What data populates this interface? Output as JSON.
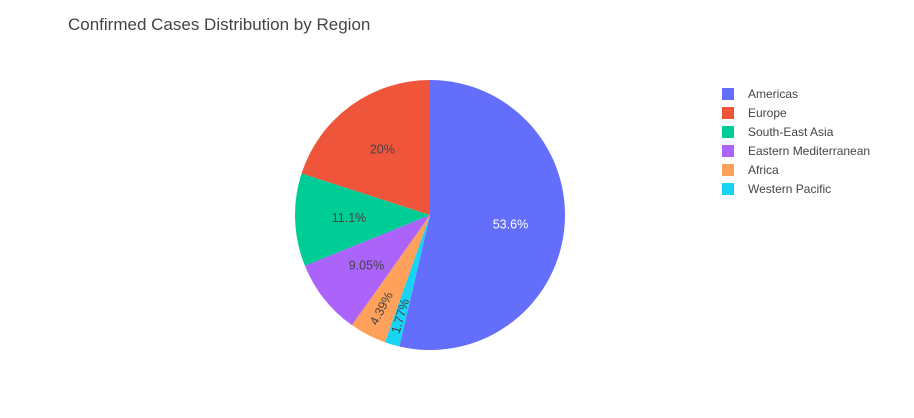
{
  "chart_data": {
    "type": "pie",
    "title": "Confirmed Cases Distribution by Region",
    "legend_position": "right",
    "slices": [
      {
        "label": "Americas",
        "value": 53.6,
        "display": "53.6%",
        "color": "#636efa",
        "text_color": "#ffffff"
      },
      {
        "label": "Western Pacific",
        "value": 1.77,
        "display": "1.77%",
        "color": "#19d3f3",
        "text_color": "#444444"
      },
      {
        "label": "Africa",
        "value": 4.39,
        "display": "4.39%",
        "color": "#ffa15a",
        "text_color": "#444444"
      },
      {
        "label": "Eastern Mediterranean",
        "value": 9.05,
        "display": "9.05%",
        "color": "#ab63fa",
        "text_color": "#444444"
      },
      {
        "label": "South-East Asia",
        "value": 11.1,
        "display": "11.1%",
        "color": "#00cc96",
        "text_color": "#444444"
      },
      {
        "label": "Europe",
        "value": 20,
        "display": "20%",
        "color": "#ef553b",
        "text_color": "#444444"
      }
    ],
    "legend": [
      {
        "label": "Americas",
        "color": "#636efa"
      },
      {
        "label": "Europe",
        "color": "#ef553b"
      },
      {
        "label": "South-East Asia",
        "color": "#00cc96"
      },
      {
        "label": "Eastern Mediterranean",
        "color": "#ab63fa"
      },
      {
        "label": "Africa",
        "color": "#ffa15a"
      },
      {
        "label": "Western Pacific",
        "color": "#19d3f3"
      }
    ]
  }
}
